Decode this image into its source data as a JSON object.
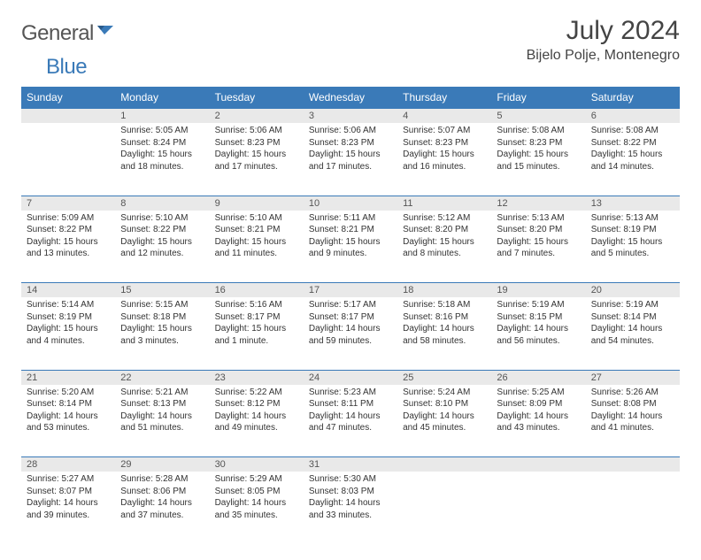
{
  "logo": {
    "general": "General",
    "blue": "Blue"
  },
  "title": "July 2024",
  "location": "Bijelo Polje, Montenegro",
  "weekdays": [
    "Sunday",
    "Monday",
    "Tuesday",
    "Wednesday",
    "Thursday",
    "Friday",
    "Saturday"
  ],
  "colors": {
    "accent": "#3a7ab8",
    "daybg": "#e9e9e9",
    "text": "#333333"
  },
  "weeks": [
    [
      {
        "n": "",
        "sunrise": "",
        "sunset": "",
        "daylight": ""
      },
      {
        "n": "1",
        "sunrise": "Sunrise: 5:05 AM",
        "sunset": "Sunset: 8:24 PM",
        "daylight": "Daylight: 15 hours and 18 minutes."
      },
      {
        "n": "2",
        "sunrise": "Sunrise: 5:06 AM",
        "sunset": "Sunset: 8:23 PM",
        "daylight": "Daylight: 15 hours and 17 minutes."
      },
      {
        "n": "3",
        "sunrise": "Sunrise: 5:06 AM",
        "sunset": "Sunset: 8:23 PM",
        "daylight": "Daylight: 15 hours and 17 minutes."
      },
      {
        "n": "4",
        "sunrise": "Sunrise: 5:07 AM",
        "sunset": "Sunset: 8:23 PM",
        "daylight": "Daylight: 15 hours and 16 minutes."
      },
      {
        "n": "5",
        "sunrise": "Sunrise: 5:08 AM",
        "sunset": "Sunset: 8:23 PM",
        "daylight": "Daylight: 15 hours and 15 minutes."
      },
      {
        "n": "6",
        "sunrise": "Sunrise: 5:08 AM",
        "sunset": "Sunset: 8:22 PM",
        "daylight": "Daylight: 15 hours and 14 minutes."
      }
    ],
    [
      {
        "n": "7",
        "sunrise": "Sunrise: 5:09 AM",
        "sunset": "Sunset: 8:22 PM",
        "daylight": "Daylight: 15 hours and 13 minutes."
      },
      {
        "n": "8",
        "sunrise": "Sunrise: 5:10 AM",
        "sunset": "Sunset: 8:22 PM",
        "daylight": "Daylight: 15 hours and 12 minutes."
      },
      {
        "n": "9",
        "sunrise": "Sunrise: 5:10 AM",
        "sunset": "Sunset: 8:21 PM",
        "daylight": "Daylight: 15 hours and 11 minutes."
      },
      {
        "n": "10",
        "sunrise": "Sunrise: 5:11 AM",
        "sunset": "Sunset: 8:21 PM",
        "daylight": "Daylight: 15 hours and 9 minutes."
      },
      {
        "n": "11",
        "sunrise": "Sunrise: 5:12 AM",
        "sunset": "Sunset: 8:20 PM",
        "daylight": "Daylight: 15 hours and 8 minutes."
      },
      {
        "n": "12",
        "sunrise": "Sunrise: 5:13 AM",
        "sunset": "Sunset: 8:20 PM",
        "daylight": "Daylight: 15 hours and 7 minutes."
      },
      {
        "n": "13",
        "sunrise": "Sunrise: 5:13 AM",
        "sunset": "Sunset: 8:19 PM",
        "daylight": "Daylight: 15 hours and 5 minutes."
      }
    ],
    [
      {
        "n": "14",
        "sunrise": "Sunrise: 5:14 AM",
        "sunset": "Sunset: 8:19 PM",
        "daylight": "Daylight: 15 hours and 4 minutes."
      },
      {
        "n": "15",
        "sunrise": "Sunrise: 5:15 AM",
        "sunset": "Sunset: 8:18 PM",
        "daylight": "Daylight: 15 hours and 3 minutes."
      },
      {
        "n": "16",
        "sunrise": "Sunrise: 5:16 AM",
        "sunset": "Sunset: 8:17 PM",
        "daylight": "Daylight: 15 hours and 1 minute."
      },
      {
        "n": "17",
        "sunrise": "Sunrise: 5:17 AM",
        "sunset": "Sunset: 8:17 PM",
        "daylight": "Daylight: 14 hours and 59 minutes."
      },
      {
        "n": "18",
        "sunrise": "Sunrise: 5:18 AM",
        "sunset": "Sunset: 8:16 PM",
        "daylight": "Daylight: 14 hours and 58 minutes."
      },
      {
        "n": "19",
        "sunrise": "Sunrise: 5:19 AM",
        "sunset": "Sunset: 8:15 PM",
        "daylight": "Daylight: 14 hours and 56 minutes."
      },
      {
        "n": "20",
        "sunrise": "Sunrise: 5:19 AM",
        "sunset": "Sunset: 8:14 PM",
        "daylight": "Daylight: 14 hours and 54 minutes."
      }
    ],
    [
      {
        "n": "21",
        "sunrise": "Sunrise: 5:20 AM",
        "sunset": "Sunset: 8:14 PM",
        "daylight": "Daylight: 14 hours and 53 minutes."
      },
      {
        "n": "22",
        "sunrise": "Sunrise: 5:21 AM",
        "sunset": "Sunset: 8:13 PM",
        "daylight": "Daylight: 14 hours and 51 minutes."
      },
      {
        "n": "23",
        "sunrise": "Sunrise: 5:22 AM",
        "sunset": "Sunset: 8:12 PM",
        "daylight": "Daylight: 14 hours and 49 minutes."
      },
      {
        "n": "24",
        "sunrise": "Sunrise: 5:23 AM",
        "sunset": "Sunset: 8:11 PM",
        "daylight": "Daylight: 14 hours and 47 minutes."
      },
      {
        "n": "25",
        "sunrise": "Sunrise: 5:24 AM",
        "sunset": "Sunset: 8:10 PM",
        "daylight": "Daylight: 14 hours and 45 minutes."
      },
      {
        "n": "26",
        "sunrise": "Sunrise: 5:25 AM",
        "sunset": "Sunset: 8:09 PM",
        "daylight": "Daylight: 14 hours and 43 minutes."
      },
      {
        "n": "27",
        "sunrise": "Sunrise: 5:26 AM",
        "sunset": "Sunset: 8:08 PM",
        "daylight": "Daylight: 14 hours and 41 minutes."
      }
    ],
    [
      {
        "n": "28",
        "sunrise": "Sunrise: 5:27 AM",
        "sunset": "Sunset: 8:07 PM",
        "daylight": "Daylight: 14 hours and 39 minutes."
      },
      {
        "n": "29",
        "sunrise": "Sunrise: 5:28 AM",
        "sunset": "Sunset: 8:06 PM",
        "daylight": "Daylight: 14 hours and 37 minutes."
      },
      {
        "n": "30",
        "sunrise": "Sunrise: 5:29 AM",
        "sunset": "Sunset: 8:05 PM",
        "daylight": "Daylight: 14 hours and 35 minutes."
      },
      {
        "n": "31",
        "sunrise": "Sunrise: 5:30 AM",
        "sunset": "Sunset: 8:03 PM",
        "daylight": "Daylight: 14 hours and 33 minutes."
      },
      {
        "n": "",
        "sunrise": "",
        "sunset": "",
        "daylight": ""
      },
      {
        "n": "",
        "sunrise": "",
        "sunset": "",
        "daylight": ""
      },
      {
        "n": "",
        "sunrise": "",
        "sunset": "",
        "daylight": ""
      }
    ]
  ]
}
